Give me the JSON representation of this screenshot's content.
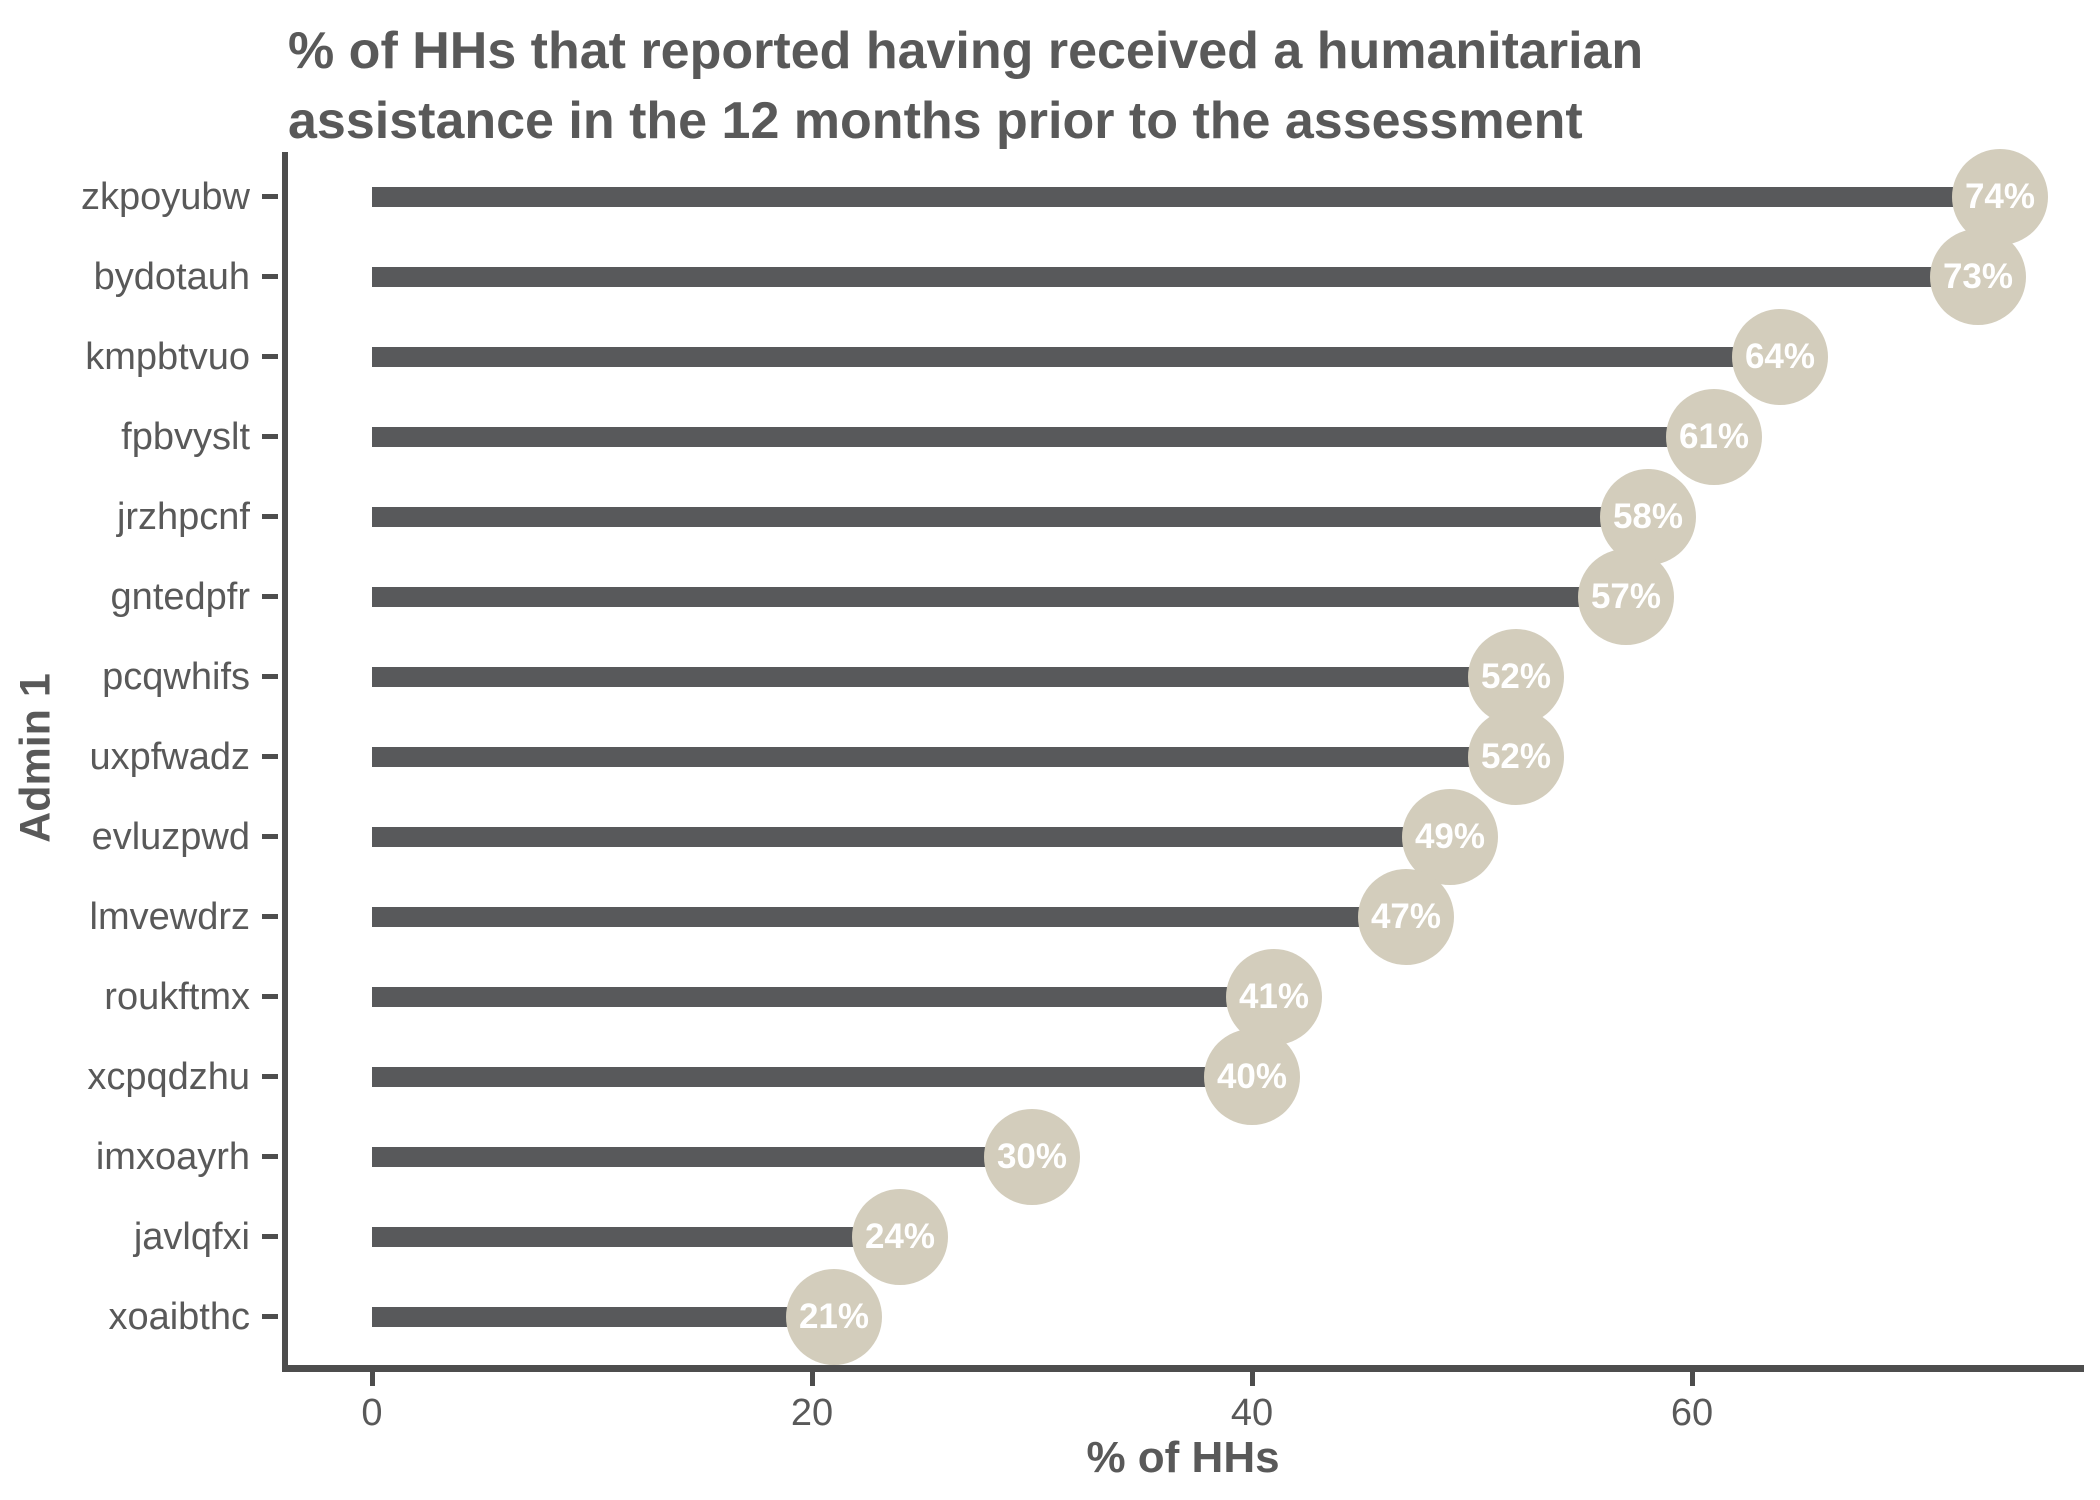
{
  "chart_data": {
    "type": "bar",
    "subtype": "lollipop",
    "orientation": "horizontal",
    "title": "% of HHs that reported having received a humanitarian assistance in the 12 months prior to the assessment",
    "title_lines": [
      "% of HHs that reported having received a humanitarian",
      "assistance in the 12 months prior to the assessment"
    ],
    "xlabel": "% of HHs",
    "ylabel": "Admin 1",
    "categories": [
      "zkpoyubw",
      "bydotauh",
      "kmpbtvuo",
      "fpbvyslt",
      "jrzhpcnf",
      "gntedpfr",
      "pcqwhifs",
      "uxpfwadz",
      "evluzpwd",
      "lmvewdrz",
      "roukftmx",
      "xcpqdzhu",
      "imxoayrh",
      "javlqfxi",
      "xoaibthc"
    ],
    "values": [
      74,
      73,
      64,
      61,
      58,
      57,
      52,
      52,
      49,
      47,
      41,
      40,
      30,
      24,
      21
    ],
    "value_labels": [
      "74%",
      "73%",
      "64%",
      "61%",
      "58%",
      "57%",
      "52%",
      "52%",
      "49%",
      "47%",
      "41%",
      "40%",
      "30%",
      "24%",
      "21%"
    ],
    "x_ticks": [
      0,
      20,
      40,
      60
    ],
    "xlim": [
      -3.8,
      77.8
    ],
    "grid": "off",
    "legend": "none",
    "colors": {
      "bar": "#58595B",
      "bubble_fill": "#D3CDBC",
      "bubble_text": "#FFFFFF",
      "axis_line": "#4D4D4D",
      "text": "#595959",
      "background": "#FFFFFF"
    }
  }
}
